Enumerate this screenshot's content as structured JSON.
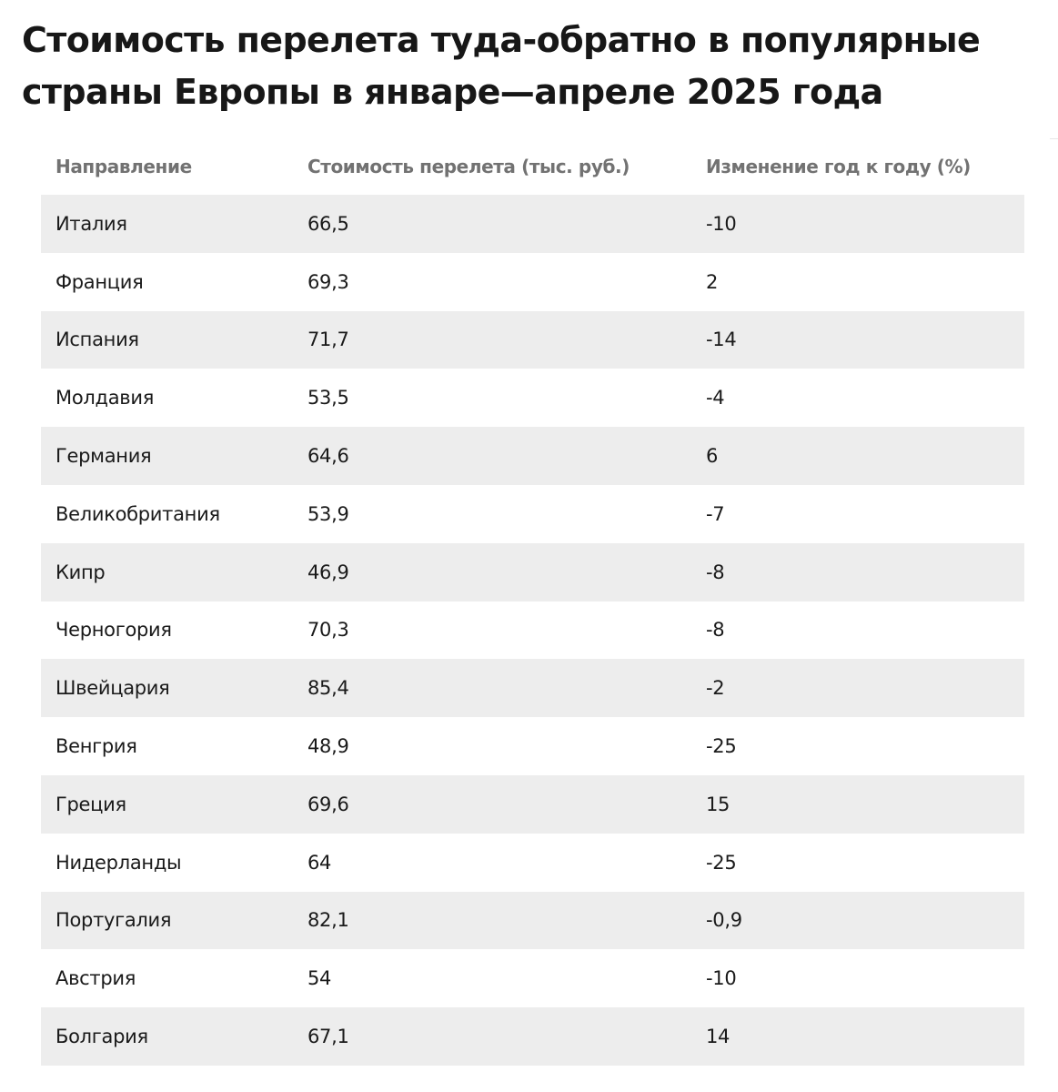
{
  "title": "Стоимость перелета туда-обратно в популярные страны Европы в январе—апреле 2025 года",
  "table": {
    "headers": [
      "Направление",
      "Стоимость перелета (тыс. руб.)",
      "Изменение год к году (%)"
    ],
    "rows": [
      [
        "Италия",
        "66,5",
        "-10"
      ],
      [
        "Франция",
        "69,3",
        "2"
      ],
      [
        "Испания",
        "71,7",
        "-14"
      ],
      [
        "Молдавия",
        "53,5",
        "-4"
      ],
      [
        "Германия",
        "64,6",
        "6"
      ],
      [
        "Великобритания",
        "53,9",
        "-7"
      ],
      [
        "Кипр",
        "46,9",
        "-8"
      ],
      [
        "Черногория",
        "70,3",
        "-8"
      ],
      [
        "Швейцария",
        "85,4",
        "-2"
      ],
      [
        "Венгрия",
        "48,9",
        "-25"
      ],
      [
        "Греция",
        "69,6",
        "15"
      ],
      [
        "Нидерланды",
        "64",
        "-25"
      ],
      [
        "Португалия",
        "82,1",
        "-0,9"
      ],
      [
        "Австрия",
        "54",
        "-10"
      ],
      [
        "Болгария",
        "67,1",
        "14"
      ]
    ]
  },
  "colors": {
    "stripe": "#ededed",
    "header_text": "#727272",
    "body_text": "#1a1a1a"
  }
}
